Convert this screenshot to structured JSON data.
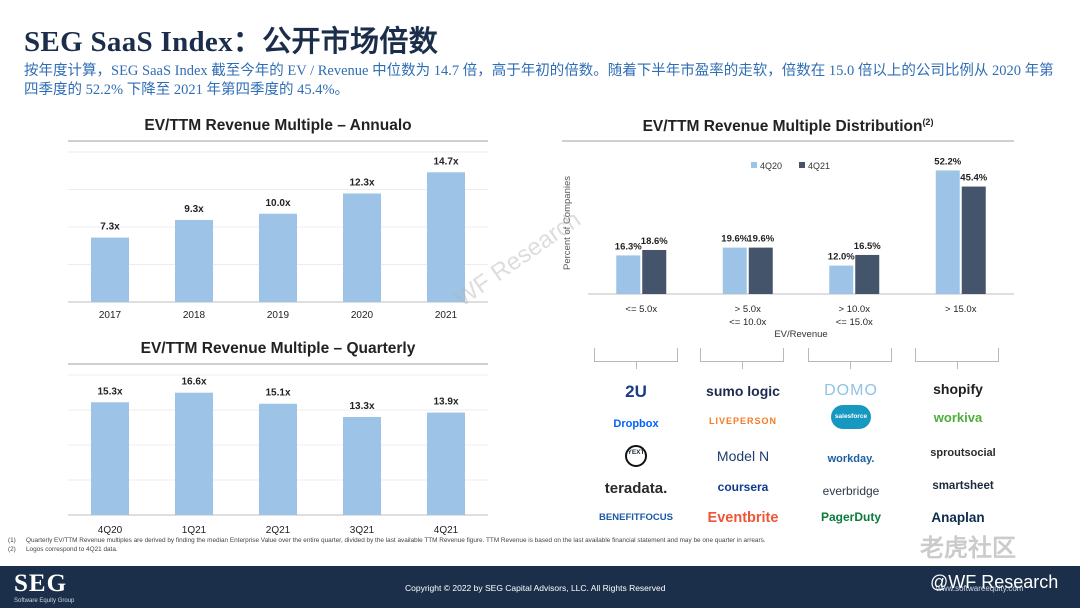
{
  "header": {
    "title": "SEG SaaS Index：公开市场倍数",
    "subtitle": "按年度计算，SEG SaaS Index 截至今年的 EV / Revenue 中位数为 14.7 倍，高于年初的倍数。随着下半年市盈率的走软，倍数在 15.0 倍以上的公司比例从 2020 年第四季度的 52.2% 下降至 2021 年第四季度的 45.4%。"
  },
  "colors": {
    "light_blue": "#9dc3e6",
    "dark_navy": "#44546a",
    "title_navy": "#1a2d4a",
    "subtitle_blue": "#2f6eb5"
  },
  "chart_data": [
    {
      "type": "bar",
      "title": "EV/TTM Revenue Multiple – Annualo",
      "categories": [
        "2017",
        "2018",
        "2019",
        "2020",
        "2021"
      ],
      "values": [
        7.3,
        9.3,
        10.0,
        12.3,
        14.7
      ],
      "labels": [
        "7.3x",
        "9.3x",
        "10.0x",
        "12.3x",
        "14.7x"
      ],
      "ylim": [
        0,
        17
      ],
      "grid": true
    },
    {
      "type": "bar",
      "title": "EV/TTM Revenue Multiple – Quarterly",
      "categories": [
        "4Q20",
        "1Q21",
        "2Q21",
        "3Q21",
        "4Q21"
      ],
      "values": [
        15.3,
        16.6,
        15.1,
        13.3,
        13.9
      ],
      "labels": [
        "15.3x",
        "16.6x",
        "15.1x",
        "13.3x",
        "13.9x"
      ],
      "ylim": [
        0,
        19
      ],
      "grid": true
    },
    {
      "type": "bar",
      "title": "EV/TTM Revenue Multiple Distribution",
      "title_note": "(2)",
      "ylabel": "Percent of Companies",
      "xlabel": "EV/Revenue",
      "categories": [
        [
          "<= 5.0x"
        ],
        [
          "> 5.0x",
          "<= 10.0x"
        ],
        [
          "> 10.0x",
          "<= 15.0x"
        ],
        [
          "> 15.0x"
        ]
      ],
      "series": [
        {
          "name": "4Q20",
          "values": [
            16.3,
            19.6,
            12.0,
            52.2
          ],
          "labels": [
            "16.3%",
            "19.6%",
            "12.0%",
            "52.2%"
          ]
        },
        {
          "name": "4Q21",
          "values": [
            18.6,
            19.6,
            16.5,
            45.4
          ],
          "labels": [
            "18.6%",
            "19.6%",
            "16.5%",
            "45.4%"
          ]
        }
      ],
      "ylim": [
        0,
        60
      ],
      "legend": "top-left"
    }
  ],
  "logos": [
    [
      "2U",
      "Dropbox",
      "YEXT",
      "teradata.",
      "BENEFITFOCUS"
    ],
    [
      "sumo logic",
      "LIVEPERSON",
      "Model N",
      "coursera",
      "Eventbrite"
    ],
    [
      "DOMO",
      "salesforce",
      "workday.",
      "everbridge",
      "PagerDuty"
    ],
    [
      "shopify",
      "workiva",
      "sproutsocial",
      "smartsheet",
      "Anaplan"
    ]
  ],
  "footnotes": [
    {
      "num": "(1)",
      "text": "Quarterly EV/TTM Revenue multiples are derived by finding the median Enterprise Value over the entire quarter, divided by the last available TTM Revenue figure. TTM Revenue is based on the last available financial statement and may be one quarter in arrears."
    },
    {
      "num": "(2)",
      "text": "Logos correspond to 4Q21 data."
    }
  ],
  "footer": {
    "logo": "SEG",
    "logo_sub": "Software Equity Group",
    "copyright": "Copyright © 2022 by SEG Capital Advisors, LLC. All Rights Reserved",
    "site": "www.softwareequity.com"
  },
  "watermarks": {
    "diagonal": "WF Research",
    "brand": "老虎社区",
    "handle": "@WF Research"
  }
}
